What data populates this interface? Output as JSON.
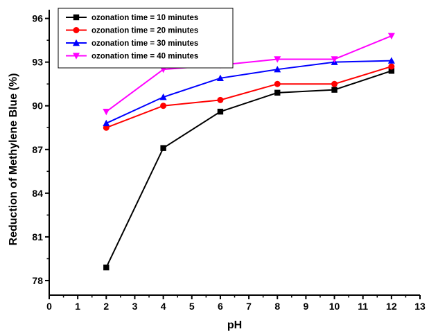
{
  "chart_data": {
    "type": "line",
    "title": "",
    "xlabel": "pH",
    "ylabel": "Reduction of Methylene Blue (%)",
    "xlim": [
      0,
      13
    ],
    "ylim": [
      77,
      96.6
    ],
    "x_ticks": [
      0,
      1,
      2,
      3,
      4,
      5,
      6,
      7,
      8,
      9,
      10,
      11,
      12,
      13
    ],
    "y_ticks": [
      78,
      81,
      84,
      87,
      90,
      93,
      96
    ],
    "grid": false,
    "legend_position": "top-left",
    "x": [
      2,
      4,
      6,
      8,
      10,
      12
    ],
    "series": [
      {
        "name": "ozonation time = 10 minutes",
        "color": "#000000",
        "marker": "square",
        "values": [
          78.9,
          87.1,
          89.6,
          90.9,
          91.1,
          92.4
        ]
      },
      {
        "name": "ozonation time = 20 minutes",
        "color": "#ff0000",
        "marker": "circle",
        "values": [
          88.5,
          90.0,
          90.4,
          91.5,
          91.5,
          92.7
        ]
      },
      {
        "name": "ozonation time = 30 minutes",
        "color": "#0000ff",
        "marker": "triangle-up",
        "values": [
          88.8,
          90.6,
          91.9,
          92.5,
          93.0,
          93.1
        ]
      },
      {
        "name": "ozonation time = 40 minutes",
        "color": "#ff00ff",
        "marker": "triangle-down",
        "values": [
          89.6,
          92.5,
          92.8,
          93.2,
          93.2,
          94.8
        ]
      }
    ]
  }
}
